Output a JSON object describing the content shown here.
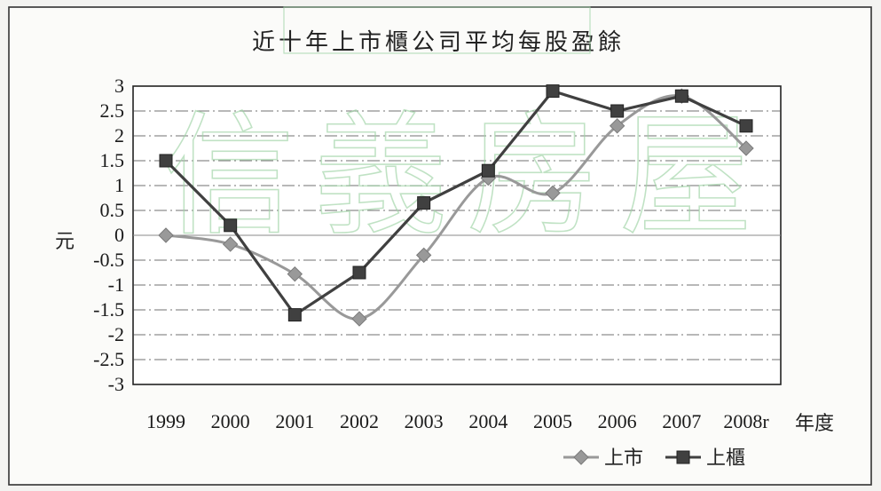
{
  "chart_data": {
    "type": "line",
    "title": "近十年上市櫃公司平均每股盈餘",
    "xlabel": "年度",
    "ylabel": "元",
    "categories": [
      "1999",
      "2000",
      "2001",
      "2002",
      "2003",
      "2004",
      "2005",
      "2006",
      "2007",
      "2008r"
    ],
    "ylim": [
      -3,
      3
    ],
    "yticks": [
      3,
      2.5,
      2,
      1.5,
      1,
      0.5,
      0,
      -0.5,
      -1,
      -1.5,
      -2,
      -2.5,
      -3
    ],
    "ytick_labels": [
      "3",
      "2.5",
      "2",
      "1.5",
      "1",
      "0.5",
      "0",
      "-0.5",
      "-1",
      "-1.5",
      "-2",
      "-2.5",
      "-3"
    ],
    "grid": true,
    "legend_position": "bottom-right",
    "series": [
      {
        "name": "上市",
        "marker": "diamond",
        "smooth": true,
        "color": "#999999",
        "values": [
          0.0,
          -0.18,
          -0.78,
          -1.68,
          -0.4,
          1.15,
          0.85,
          2.2,
          2.8,
          1.75
        ]
      },
      {
        "name": "上櫃",
        "marker": "square",
        "smooth": false,
        "color": "#404040",
        "values": [
          1.5,
          0.2,
          -1.6,
          -0.75,
          0.65,
          1.3,
          2.9,
          2.5,
          2.8,
          2.2
        ]
      }
    ]
  },
  "watermark": "信義房屋"
}
